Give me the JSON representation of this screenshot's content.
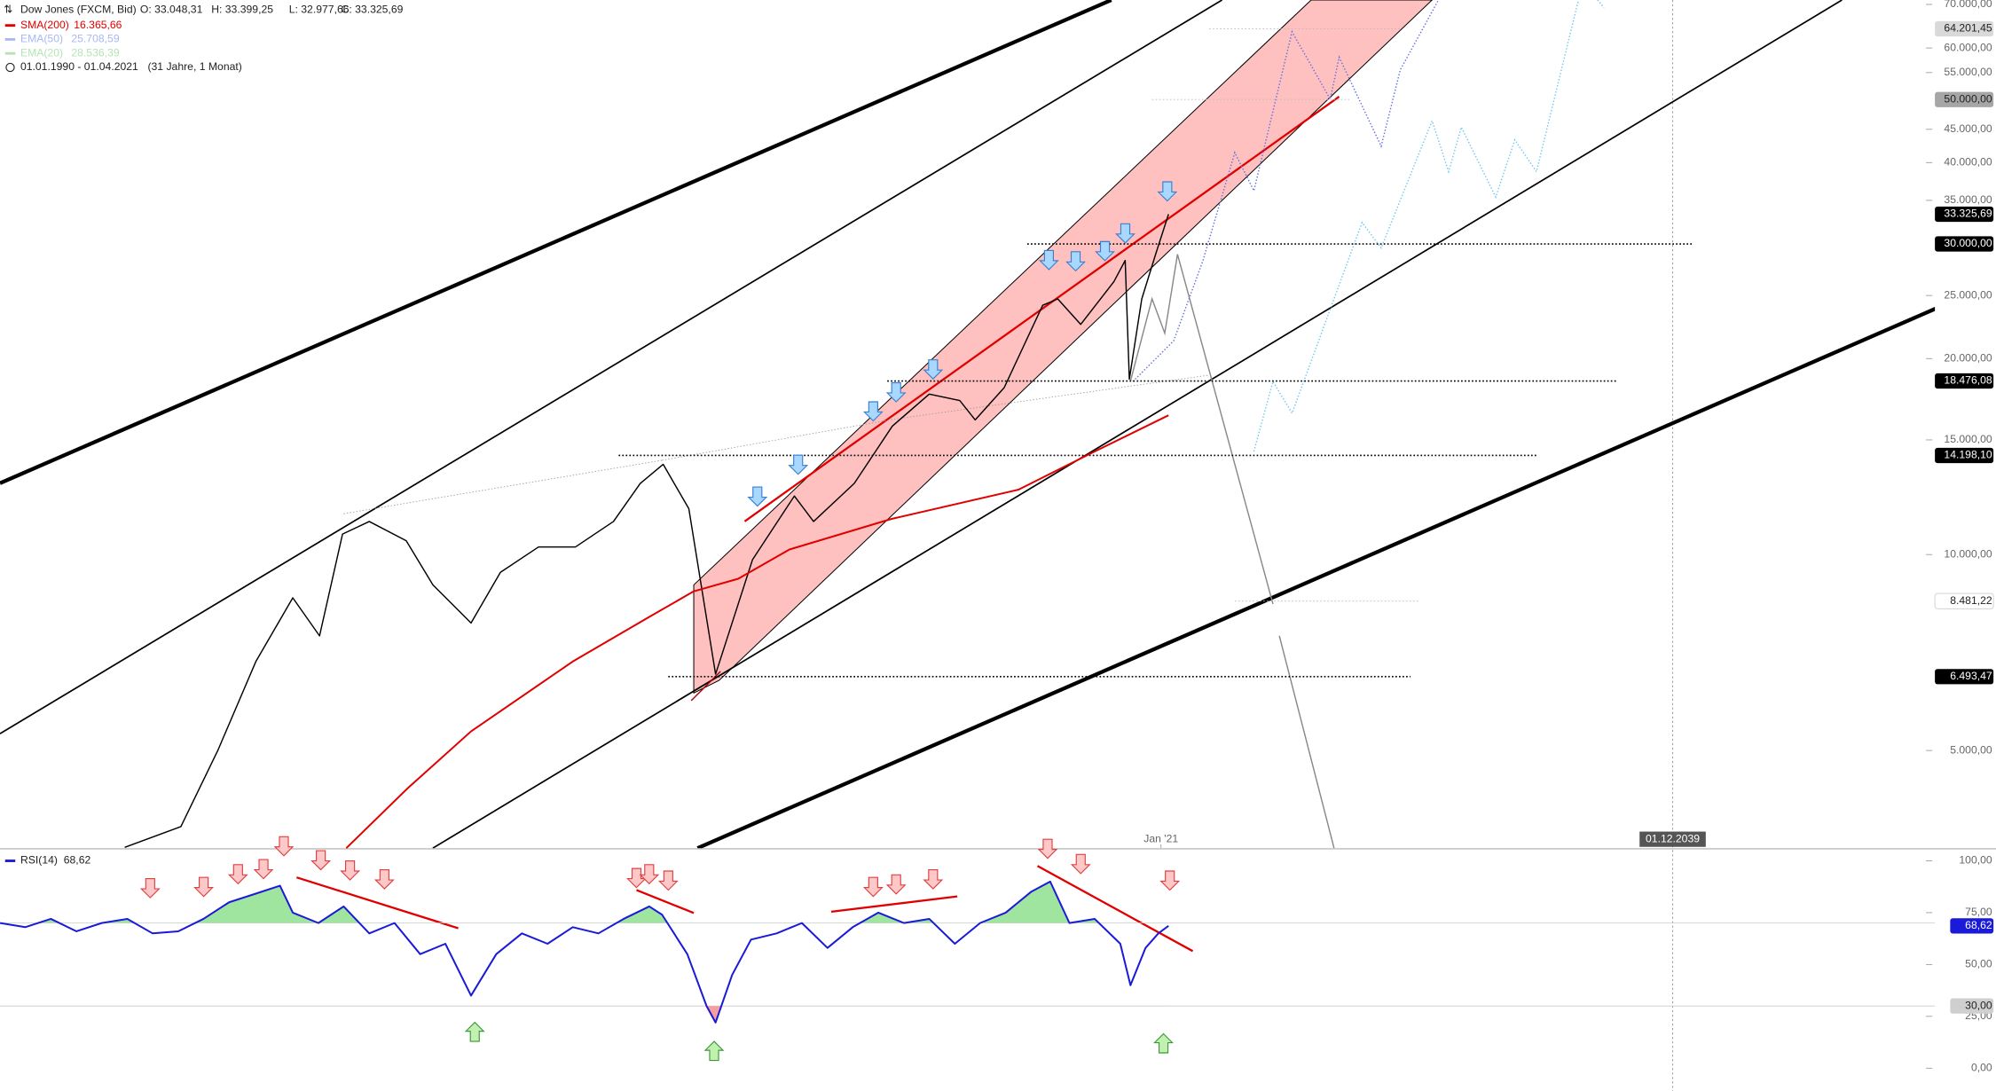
{
  "header": {
    "ohlc": [
      "O: 33.048,31",
      "H: 33.399,25",
      "L: 32.977,66",
      "C: 33.325,69"
    ],
    "indicators": [
      {
        "name": "EMA(50)",
        "label": "25.708,59",
        "color": "#a9b8f5"
      },
      {
        "name": "EMA(20)",
        "label": "28.536,39",
        "color": "#b5e3b5"
      }
    ],
    "range": "01.01.1990 - 01.04.2021",
    "span": "(31 Jahre, 1 Monat)"
  },
  "chart_data": [
    {
      "type": "line",
      "log_scale": true,
      "xlim": [
        1990.19,
        2041.2
      ],
      "ylim": [
        3540,
        71100
      ],
      "xticks": [
        {
          "value": 2021,
          "label": "Jan '21"
        }
      ],
      "yticks": [
        {
          "value": 5000,
          "label": "5.000,00"
        },
        {
          "value": 10000,
          "label": "10.000,00"
        },
        {
          "value": 15000,
          "label": "15.000,00"
        },
        {
          "value": 20000,
          "label": "20.000,00"
        },
        {
          "value": 25000,
          "label": "25.000,00"
        },
        {
          "value": 35000,
          "label": "35.000,00"
        },
        {
          "value": 40000,
          "label": "40.000,00"
        },
        {
          "value": 45000,
          "label": "45.000,00"
        },
        {
          "value": 55000,
          "label": "55.000,00"
        },
        {
          "value": 60000,
          "label": "60.000,00"
        },
        {
          "value": 70000,
          "label": "70.000,00"
        }
      ],
      "series": [
        {
          "name": "Dow Jones (FXCM, Bid)",
          "color": "#000000",
          "last_label": "33.325,69",
          "x": [
            1993.5,
            1994.99,
            1995.97,
            1996.98,
            1997.96,
            1998.67,
            1999.28,
            1999.99,
            2000.97,
            2001.68,
            2002.69,
            2003.47,
            2004.48,
            2005.46,
            2006.47,
            2007.18,
            2007.79,
            2008.47,
            2009.18,
            2010.16,
            2011.27,
            2011.78,
            2012.86,
            2013.87,
            2014.85,
            2015.66,
            2016.07,
            2016.84,
            2017.86,
            2018.26,
            2018.87,
            2019.75,
            2020.05,
            2020.16,
            2020.49,
            2020.86,
            2021.2
          ],
          "values": [
            3550,
            3820,
            5000,
            6850,
            8580,
            7500,
            10750,
            11240,
            10500,
            8980,
            7850,
            9390,
            10270,
            10270,
            11240,
            12860,
            13760,
            11760,
            6550,
            9820,
            12300,
            11240,
            12860,
            15750,
            17640,
            17240,
            16100,
            18050,
            24150,
            24700,
            22570,
            26250,
            28300,
            18590,
            24700,
            28950,
            33325.69
          ]
        },
        {
          "name": "SMA(200)",
          "color": "#e00000",
          "last_label": "16.365,66",
          "x": [
            1999.38,
            2001.0,
            2002.69,
            2005.39,
            2007.42,
            2008.6,
            2009.78,
            2011.14,
            2013.84,
            2017.22,
            2019.24,
            2021.2
          ],
          "values": [
            3540,
            4370,
            5350,
            6850,
            8020,
            8780,
            9180,
            10180,
            11340,
            12580,
            14400,
            16365.66
          ]
        }
      ],
      "levels": [
        {
          "value": 64201.45,
          "label": "64.201,45",
          "color": "#d9d9d9"
        },
        {
          "value": 50000,
          "label": "50.000,00",
          "color": "#a6a6a6"
        },
        {
          "value": 30000,
          "label": "30.000,00",
          "color": "#000000"
        },
        {
          "value": 18476.08,
          "label": "18.476,08",
          "color": "#000000"
        },
        {
          "value": 14198.1,
          "label": "14.198,10",
          "color": "#000000"
        },
        {
          "value": 8481.22,
          "label": "8.481,22",
          "color": "#ffffff"
        },
        {
          "value": 6493.47,
          "label": "6.493,47",
          "color": "#000000"
        }
      ],
      "cursor_label": "01.12.2039"
    },
    {
      "type": "line",
      "xlim": [
        1990.19,
        2041.2
      ],
      "ylim": [
        -11,
        105.5
      ],
      "yticks": [
        {
          "value": 100,
          "label": "100,00"
        },
        {
          "value": 75,
          "label": "75,00"
        },
        {
          "value": 50,
          "label": "50,00"
        },
        {
          "value": 25,
          "label": "25,00"
        },
        {
          "value": 0,
          "label": "0,00"
        }
      ],
      "overbought": 70,
      "oversold": {
        "value": 30,
        "label": "30,00"
      },
      "series": [
        {
          "name": "RSI(14)",
          "color": "#1a1ad8",
          "last_label": "68,62",
          "x": [
            1990.19,
            1990.86,
            1991.54,
            1992.22,
            1992.89,
            1993.57,
            1994.24,
            1994.92,
            1995.59,
            1996.27,
            1996.95,
            1997.62,
            1997.96,
            1998.64,
            1999.31,
            1999.99,
            2000.66,
            2001.34,
            2002.01,
            2002.69,
            2003.36,
            2004.04,
            2004.72,
            2005.39,
            2006.07,
            2006.74,
            2007.42,
            2007.76,
            2008.43,
            2008.94,
            2009.18,
            2009.62,
            2010.12,
            2010.8,
            2011.47,
            2012.15,
            2012.82,
            2013.5,
            2014.18,
            2014.85,
            2015.53,
            2016.2,
            2016.88,
            2017.55,
            2018.06,
            2018.57,
            2019.24,
            2019.92,
            2020.19,
            2020.59,
            2020.93,
            2021.2
          ],
          "values": [
            70,
            68,
            72,
            66,
            70,
            72,
            65,
            66,
            72,
            80,
            84,
            88,
            75,
            70,
            78,
            65,
            70,
            55,
            60,
            35,
            55,
            65,
            60,
            68,
            65,
            72,
            78,
            74,
            55,
            30,
            22,
            45,
            62,
            65,
            70,
            58,
            68,
            75,
            70,
            72,
            60,
            70,
            75,
            85,
            90,
            70,
            72,
            60,
            40,
            58,
            65,
            68.62
          ]
        }
      ]
    }
  ]
}
